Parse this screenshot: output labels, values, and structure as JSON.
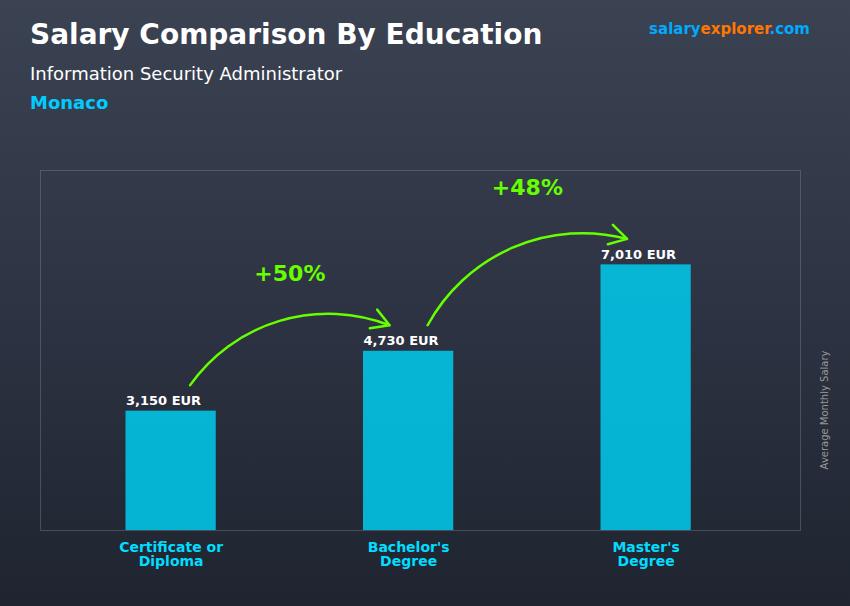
{
  "chart_data": {
    "type": "bar",
    "title": "Salary Comparison By Education",
    "subtitle": "Information Security Administrator",
    "ylabel": "Average Monthly Salary",
    "categories": [
      "Certificate or\nDiploma",
      "Bachelor's\nDegree",
      "Master's\nDegree"
    ],
    "values": [
      3150,
      4730,
      7010
    ],
    "value_labels": [
      "3,150 EUR",
      "4,730 EUR",
      "7,010 EUR"
    ],
    "data_labels": true,
    "color": "#00ccee",
    "xtick_color": "#00ddff",
    "ylim": [
      0,
      9500
    ],
    "yticks": [],
    "tick_labels": "x",
    "grid": false,
    "annotations": [
      {
        "text": "Monaco",
        "color": "#00ccff"
      },
      {
        "parts": [
          {
            "text": "salary",
            "color": "#00aaff"
          },
          {
            "text": "explorer",
            "color": "#ff7700"
          },
          {
            "text": ".com",
            "color": "#00aaff"
          }
        ]
      },
      {
        "text": "+50%",
        "from": "Certificate or\nDiploma",
        "to": "Bachelor's\nDegree",
        "color": "#66ff00"
      },
      {
        "text": "+48%",
        "from": "Bachelor's\nDegree",
        "to": "Master's\nDegree",
        "color": "#66ff00"
      }
    ]
  }
}
